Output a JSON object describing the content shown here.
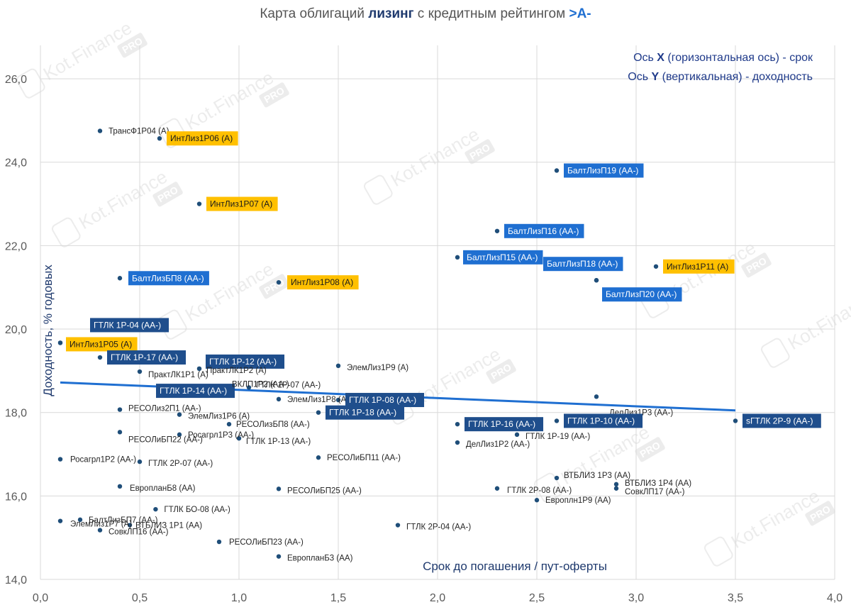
{
  "chart_data": {
    "type": "scatter",
    "title_parts": [
      {
        "text": "Карта облигаций ",
        "style": "normal"
      },
      {
        "text": "лизинг",
        "style": "bold-navy"
      },
      {
        "text": " с кредитным рейтингом ",
        "style": "normal"
      },
      {
        "text": ">A-",
        "style": "bold-blue"
      }
    ],
    "xlabel": "Срок до погашения / пут-оферты",
    "ylabel": "Доходность, % годовых",
    "xlim": [
      0,
      4
    ],
    "ylim": [
      14,
      26.8
    ],
    "x_ticks": [
      "0,0",
      "0,5",
      "1,0",
      "1,5",
      "2,0",
      "2,5",
      "3,0",
      "3,5",
      "4,0"
    ],
    "x_tick_values": [
      0,
      0.5,
      1,
      1.5,
      2,
      2.5,
      3,
      3.5,
      4
    ],
    "y_ticks": [
      "14,0",
      "16,0",
      "18,0",
      "20,0",
      "22,0",
      "24,0",
      "26,0"
    ],
    "y_tick_values": [
      14,
      16,
      18,
      20,
      22,
      24,
      26
    ],
    "grid": true,
    "legend_note": {
      "line1_prefix": "Ось ",
      "line1_axis": "X",
      "line1_suffix": " (горизонтальная ось) - срок",
      "line2_prefix": "Ось ",
      "line2_axis": "Y",
      "line2_suffix": " (вертикальная) - доходность"
    },
    "watermark_text": "Kot.Finance",
    "watermark_badge": "PRO",
    "trendline": {
      "x": [
        0.1,
        3.5
      ],
      "y": [
        18.72,
        18.05
      ]
    },
    "colors": {
      "point": "#1f4e79",
      "trend": "#1f6fd1",
      "label_gold": "#ffc000",
      "label_blue": "#1f6fd1",
      "label_navy": "#1f4e8c",
      "title_navy": "#1f3a6e",
      "title_blue": "#1f6fd1",
      "note_navy": "#1f3a8a"
    },
    "points": [
      {
        "name": "ТрансФ1Р04 (A)",
        "x": 0.3,
        "y": 24.75,
        "style": "plain",
        "ldx": 12,
        "ldy": 0
      },
      {
        "name": "ИнтЛиз1Р06 (A)",
        "x": 0.6,
        "y": 24.57,
        "style": "gold",
        "ldx": 10,
        "ldy": 0
      },
      {
        "name": "БалтЛизП19 (AA-)",
        "x": 2.6,
        "y": 23.8,
        "style": "blue",
        "ldx": 10,
        "ldy": 0
      },
      {
        "name": "ИнтЛиз1Р07 (A)",
        "x": 0.8,
        "y": 23.0,
        "style": "gold",
        "ldx": 10,
        "ldy": 0
      },
      {
        "name": "БалтЛизП16 (AA-)",
        "x": 2.3,
        "y": 22.35,
        "style": "blue",
        "ldx": 10,
        "ldy": 0
      },
      {
        "name": "БалтЛизП15 (AA-)",
        "x": 2.1,
        "y": 21.72,
        "style": "blue",
        "ldx": 8,
        "ldy": 0
      },
      {
        "name": "БалтЛизП18 (AA-)",
        "x": 2.8,
        "y": 21.17,
        "style": "blue",
        "ldx": -75,
        "ldy": -23
      },
      {
        "name": "ИнтЛиз1Р11 (A)",
        "x": 3.1,
        "y": 21.5,
        "style": "gold",
        "ldx": 10,
        "ldy": 0
      },
      {
        "name": "БалтЛизП20 (AA-)",
        "x": 2.8,
        "y": 21.17,
        "style": "blue",
        "ldx": 8,
        "ldy": 20
      },
      {
        "name": "БалтЛизБП8 (AA-)",
        "x": 0.4,
        "y": 21.22,
        "style": "blue",
        "ldx": 12,
        "ldy": 0
      },
      {
        "name": "ИнтЛиз1Р08 (A)",
        "x": 1.2,
        "y": 21.12,
        "style": "gold",
        "ldx": 12,
        "ldy": 0
      },
      {
        "name": "ГТЛК 1Р-04 (AA-)",
        "x": 0.1,
        "y": 19.67,
        "style": "navy",
        "ldx": 42,
        "ldy": -25
      },
      {
        "name": "ИнтЛиз1Р05 (A)",
        "x": 0.1,
        "y": 19.67,
        "style": "gold",
        "ldx": 8,
        "ldy": 2
      },
      {
        "name": "ГТЛК 1Р-17 (AA-)",
        "x": 0.3,
        "y": 19.32,
        "style": "navy",
        "ldx": 10,
        "ldy": 0
      },
      {
        "name": "ГТЛК 1Р-12 (AA-)",
        "x": 0.8,
        "y": 19.05,
        "style": "navy",
        "ldx": 9,
        "ldy": -10
      },
      {
        "name": "ПрактЛК1Р1 (A)",
        "x": 0.5,
        "y": 18.98,
        "style": "plain",
        "ldx": 12,
        "ldy": 4
      },
      {
        "name": "ПрактЛК1Р2 (A)",
        "x": 0.8,
        "y": 19.05,
        "style": "plain",
        "ldx": 10,
        "ldy": 2
      },
      {
        "name": "ЭлемЛиз1Р9 (A)",
        "x": 1.5,
        "y": 19.12,
        "style": "plain",
        "ldx": 12,
        "ldy": 2
      },
      {
        "name": "ГТЛК 1Р-14 (AA-)",
        "x": 0.6,
        "y": 18.52,
        "style": "navy",
        "ldx": -5,
        "ldy": 0
      },
      {
        "name": "ВКЛП1Р2 (AA-)",
        "x": 0.9,
        "y": 18.58,
        "style": "plain",
        "ldx": 18,
        "ldy": -6
      },
      {
        "name": "ГТЛК 1Р-07 (AA-)",
        "x": 1.05,
        "y": 18.6,
        "style": "plain",
        "ldx": 10,
        "ldy": -4
      },
      {
        "name": "ЭлемЛиз1Р8 (A)",
        "x": 1.2,
        "y": 18.32,
        "style": "plain",
        "ldx": 12,
        "ldy": 0
      },
      {
        "name": "ГТЛК 1Р-08 (AA-)",
        "x": 1.5,
        "y": 18.3,
        "style": "navy",
        "ldx": 10,
        "ldy": 0
      },
      {
        "name": "ГТЛК 1Р-18 (AA-)",
        "x": 1.4,
        "y": 18.0,
        "style": "navy",
        "ldx": 10,
        "ldy": 0
      },
      {
        "name": "РЕСОЛиз2П1 (AA-)",
        "x": 0.4,
        "y": 18.07,
        "style": "plain",
        "ldx": 12,
        "ldy": -2
      },
      {
        "name": "ЭлемЛиз1Р6 (A)",
        "x": 0.7,
        "y": 17.95,
        "style": "plain",
        "ldx": 12,
        "ldy": 2
      },
      {
        "name": "РЕСОЛизБП8 (AA-)",
        "x": 0.95,
        "y": 17.72,
        "style": "plain",
        "ldx": 10,
        "ldy": 0
      },
      {
        "name": "РЕСОЛиБП22 (AA-)",
        "x": 0.4,
        "y": 17.53,
        "style": "plain",
        "ldx": 12,
        "ldy": 10
      },
      {
        "name": "Росагрл1Р3 (AA-)",
        "x": 0.7,
        "y": 17.47,
        "style": "plain",
        "ldx": 12,
        "ldy": 0
      },
      {
        "name": "ГТЛК 1Р-13 (AA-)",
        "x": 1.0,
        "y": 17.38,
        "style": "plain",
        "ldx": 10,
        "ldy": 4
      },
      {
        "name": "ДелЛиз1Р3 (AA-)",
        "x": 2.8,
        "y": 18.38,
        "style": "plain",
        "ldx": 18,
        "ldy": 22
      },
      {
        "name": "ГТЛК 1Р-16 (AA-)",
        "x": 2.1,
        "y": 17.72,
        "style": "navy",
        "ldx": 10,
        "ldy": 0
      },
      {
        "name": "ГТЛК 1Р-10 (AA-)",
        "x": 2.6,
        "y": 17.8,
        "style": "navy",
        "ldx": 10,
        "ldy": 0
      },
      {
        "name": "sГТЛК 2Р-9 (AA-)",
        "x": 3.5,
        "y": 17.8,
        "style": "navy",
        "ldx": 10,
        "ldy": 0
      },
      {
        "name": "ГТЛК 1Р-19 (AA-)",
        "x": 2.4,
        "y": 17.47,
        "style": "plain",
        "ldx": 12,
        "ldy": 2
      },
      {
        "name": "ДелЛиз1Р2 (AA-)",
        "x": 2.1,
        "y": 17.28,
        "style": "plain",
        "ldx": 12,
        "ldy": 2
      },
      {
        "name": "Росагрл1Р2 (AA-)",
        "x": 0.1,
        "y": 16.88,
        "style": "plain",
        "ldx": 14,
        "ldy": 0
      },
      {
        "name": "ГТЛК 2Р-07 (AA-)",
        "x": 0.5,
        "y": 16.82,
        "style": "plain",
        "ldx": 12,
        "ldy": 2
      },
      {
        "name": "РЕСОЛиБП11 (AA-)",
        "x": 1.4,
        "y": 16.92,
        "style": "plain",
        "ldx": 12,
        "ldy": 0
      },
      {
        "name": "ВТБЛИЗ 1Р3 (AA)",
        "x": 2.6,
        "y": 16.43,
        "style": "plain",
        "ldx": 10,
        "ldy": -4
      },
      {
        "name": "ВТБЛИЗ 1Р4 (AA)",
        "x": 2.9,
        "y": 16.28,
        "style": "plain",
        "ldx": 12,
        "ldy": -2
      },
      {
        "name": "СовкЛП17 (AA-)",
        "x": 2.9,
        "y": 16.18,
        "style": "plain",
        "ldx": 12,
        "ldy": 4
      },
      {
        "name": "ЕвропланБ8 (AA)",
        "x": 0.4,
        "y": 16.23,
        "style": "plain",
        "ldx": 14,
        "ldy": 2
      },
      {
        "name": "РЕСОЛиБП25 (AA-)",
        "x": 1.2,
        "y": 16.17,
        "style": "plain",
        "ldx": 12,
        "ldy": 2
      },
      {
        "name": "ГТЛК 2Р-08 (AA-)",
        "x": 2.3,
        "y": 16.18,
        "style": "plain",
        "ldx": 14,
        "ldy": 2
      },
      {
        "name": "Европлн1Р9 (AA)",
        "x": 2.5,
        "y": 15.9,
        "style": "plain",
        "ldx": 12,
        "ldy": 0
      },
      {
        "name": "ГТЛК БО-08 (AA-)",
        "x": 0.58,
        "y": 15.68,
        "style": "plain",
        "ldx": 12,
        "ldy": 0
      },
      {
        "name": "ЭлемЛиз1Р7 (A)",
        "x": 0.1,
        "y": 15.4,
        "style": "plain",
        "ldx": 14,
        "ldy": 4
      },
      {
        "name": "БалтЛизБП7 (AA-)",
        "x": 0.2,
        "y": 15.43,
        "style": "plain",
        "ldx": 12,
        "ldy": 0
      },
      {
        "name": "ВТБЛИЗ 1Р1 (AA)",
        "x": 0.45,
        "y": 15.3,
        "style": "plain",
        "ldx": 8,
        "ldy": 0
      },
      {
        "name": "СовкЛП16 (AA-)",
        "x": 0.3,
        "y": 15.18,
        "style": "plain",
        "ldx": 12,
        "ldy": 2
      },
      {
        "name": "ГТЛК 2Р-04 (AA-)",
        "x": 1.8,
        "y": 15.3,
        "style": "plain",
        "ldx": 12,
        "ldy": 2
      },
      {
        "name": "РЕСОЛиБП23 (AA-)",
        "x": 0.9,
        "y": 14.9,
        "style": "plain",
        "ldx": 14,
        "ldy": 0
      },
      {
        "name": "ЕвропланБ3 (AA)",
        "x": 1.2,
        "y": 14.55,
        "style": "plain",
        "ldx": 12,
        "ldy": 2
      }
    ]
  }
}
